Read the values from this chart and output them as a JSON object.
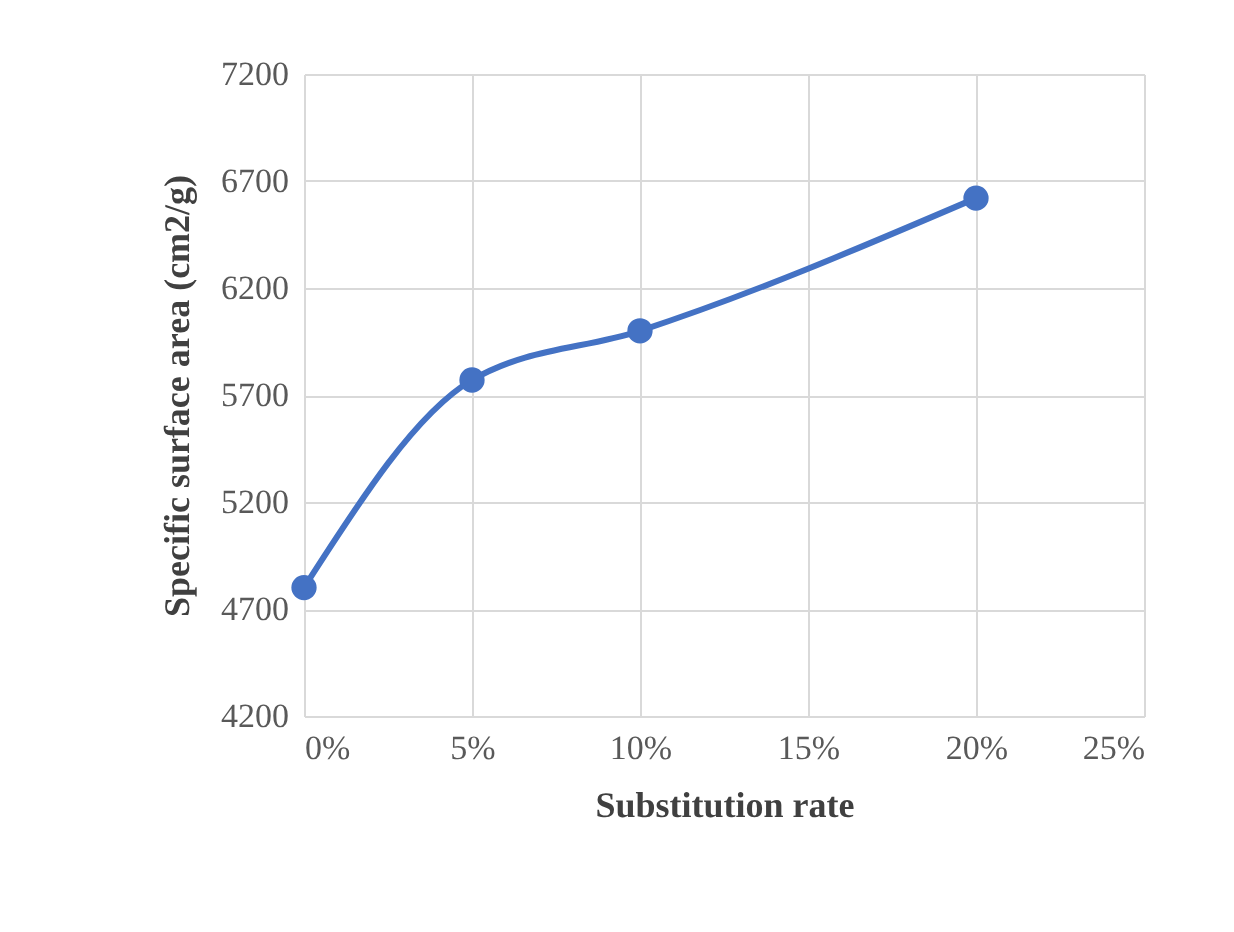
{
  "chart_data": {
    "type": "line",
    "xlabel": "Substitution rate",
    "ylabel": "Specific surface area (cm2/g)",
    "x": [
      0,
      5,
      10,
      20
    ],
    "series": [
      {
        "color": "#4472c4",
        "values": [
          4800,
          5770,
          6000,
          6620
        ]
      }
    ],
    "xlim": [
      0,
      25
    ],
    "xticks": [
      {
        "value": 0,
        "label": "0%"
      },
      {
        "value": 5,
        "label": "5%"
      },
      {
        "value": 10,
        "label": "10%"
      },
      {
        "value": 15,
        "label": "15%"
      },
      {
        "value": 20,
        "label": "20%"
      },
      {
        "value": 25,
        "label": "25%"
      }
    ],
    "ylim": [
      4200,
      7200
    ],
    "yticks": [
      4200,
      4700,
      5200,
      5700,
      6200,
      6700,
      7200
    ],
    "grid": true,
    "marker": "circle",
    "line_style": "solid"
  }
}
